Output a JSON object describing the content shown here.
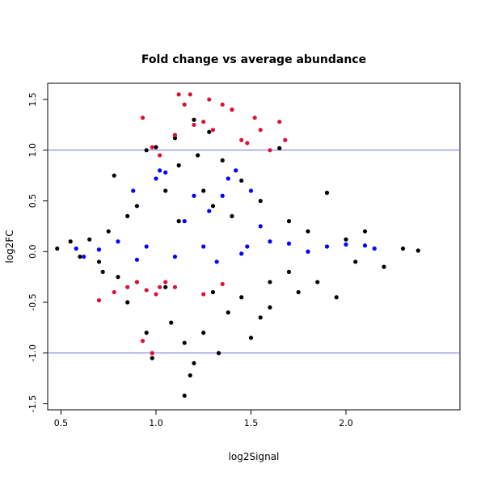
{
  "chart_data": {
    "type": "scatter",
    "title": "Fold change vs average abundance",
    "xlabel": "log2Signal",
    "ylabel": "log2FC",
    "xlim": [
      0.43,
      2.6
    ],
    "ylim": [
      -1.56,
      1.66
    ],
    "x_ticks": [
      "0.5",
      "1.0",
      "1.5",
      "2.0"
    ],
    "y_ticks": [
      "-1.5",
      "-1.0",
      "-0.5",
      "0.0",
      "0.5",
      "1.0",
      "1.5"
    ],
    "hlines": [
      {
        "y": 1.0,
        "color": "#6f6fe6"
      },
      {
        "y": -1.0,
        "color": "#6f6fe6"
      }
    ],
    "grid": false,
    "legend": "none",
    "series": [
      {
        "color": "#000000",
        "points": [
          [
            0.48,
            0.03
          ],
          [
            0.55,
            0.1
          ],
          [
            0.6,
            -0.05
          ],
          [
            0.65,
            0.12
          ],
          [
            0.7,
            -0.1
          ],
          [
            0.75,
            0.2
          ],
          [
            0.78,
            0.75
          ],
          [
            0.8,
            -0.25
          ],
          [
            0.85,
            0.35
          ],
          [
            0.9,
            -0.3
          ],
          [
            0.95,
            1.0
          ],
          [
            1.0,
            1.03
          ],
          [
            1.05,
            0.6
          ],
          [
            1.08,
            -0.7
          ],
          [
            1.1,
            1.12
          ],
          [
            1.12,
            0.85
          ],
          [
            1.15,
            -0.9
          ],
          [
            1.18,
            -1.22
          ],
          [
            1.2,
            1.3
          ],
          [
            1.22,
            0.95
          ],
          [
            1.25,
            -0.8
          ],
          [
            1.28,
            1.18
          ],
          [
            1.3,
            0.45
          ],
          [
            1.33,
            -1.0
          ],
          [
            1.35,
            0.9
          ],
          [
            1.38,
            -0.6
          ],
          [
            1.4,
            1.4
          ],
          [
            1.45,
            0.7
          ],
          [
            1.5,
            -0.85
          ],
          [
            1.55,
            0.5
          ],
          [
            1.6,
            -0.55
          ],
          [
            1.65,
            1.02
          ],
          [
            1.7,
            0.3
          ],
          [
            1.75,
            -0.4
          ],
          [
            1.8,
            0.2
          ],
          [
            1.9,
            0.58
          ],
          [
            1.95,
            -0.45
          ],
          [
            2.0,
            0.12
          ],
          [
            2.1,
            0.2
          ],
          [
            2.2,
            -0.15
          ],
          [
            2.3,
            0.03
          ],
          [
            2.38,
            0.01
          ],
          [
            1.15,
            -1.42
          ],
          [
            0.98,
            -1.05
          ],
          [
            1.2,
            -1.1
          ],
          [
            0.85,
            -0.5
          ],
          [
            1.45,
            -0.45
          ],
          [
            1.6,
            -0.3
          ],
          [
            0.72,
            -0.2
          ],
          [
            1.05,
            -0.35
          ],
          [
            1.12,
            0.3
          ],
          [
            1.4,
            0.35
          ],
          [
            0.9,
            0.45
          ],
          [
            1.3,
            -0.4
          ],
          [
            1.7,
            -0.2
          ],
          [
            1.85,
            -0.3
          ],
          [
            2.05,
            -0.1
          ],
          [
            0.95,
            -0.8
          ],
          [
            1.25,
            0.6
          ],
          [
            1.55,
            -0.65
          ]
        ]
      },
      {
        "color": "#0000ff",
        "points": [
          [
            0.58,
            0.03
          ],
          [
            0.62,
            -0.05
          ],
          [
            0.7,
            0.02
          ],
          [
            0.8,
            0.1
          ],
          [
            0.9,
            -0.08
          ],
          [
            0.95,
            0.05
          ],
          [
            1.0,
            0.72
          ],
          [
            1.02,
            0.8
          ],
          [
            1.05,
            0.78
          ],
          [
            1.1,
            -0.05
          ],
          [
            1.15,
            0.3
          ],
          [
            1.2,
            0.55
          ],
          [
            1.25,
            0.05
          ],
          [
            1.28,
            0.4
          ],
          [
            1.32,
            -0.1
          ],
          [
            1.38,
            0.72
          ],
          [
            1.42,
            0.8
          ],
          [
            1.48,
            0.05
          ],
          [
            1.5,
            0.6
          ],
          [
            1.55,
            0.25
          ],
          [
            1.6,
            0.1
          ],
          [
            1.7,
            0.08
          ],
          [
            1.8,
            0.0
          ],
          [
            1.9,
            0.05
          ],
          [
            2.0,
            0.07
          ],
          [
            2.1,
            0.06
          ],
          [
            2.15,
            0.03
          ],
          [
            0.88,
            0.6
          ],
          [
            1.35,
            0.55
          ],
          [
            1.45,
            -0.02
          ]
        ]
      },
      {
        "color": "#dd1133",
        "points": [
          [
            0.93,
            1.32
          ],
          [
            0.98,
            1.03
          ],
          [
            1.02,
            0.95
          ],
          [
            1.1,
            1.15
          ],
          [
            1.12,
            1.55
          ],
          [
            1.15,
            1.45
          ],
          [
            1.18,
            1.55
          ],
          [
            1.2,
            1.25
          ],
          [
            1.25,
            1.28
          ],
          [
            1.28,
            1.5
          ],
          [
            1.3,
            1.2
          ],
          [
            1.35,
            1.45
          ],
          [
            1.4,
            1.4
          ],
          [
            1.45,
            1.1
          ],
          [
            1.48,
            1.07
          ],
          [
            1.52,
            1.32
          ],
          [
            1.55,
            1.2
          ],
          [
            1.6,
            1.0
          ],
          [
            1.65,
            1.28
          ],
          [
            1.68,
            1.1
          ],
          [
            0.7,
            -0.48
          ],
          [
            0.78,
            -0.4
          ],
          [
            0.85,
            -0.35
          ],
          [
            0.9,
            -0.3
          ],
          [
            0.95,
            -0.38
          ],
          [
            1.0,
            -0.42
          ],
          [
            1.05,
            -0.3
          ],
          [
            1.1,
            -0.35
          ],
          [
            1.25,
            -0.42
          ],
          [
            1.35,
            -0.32
          ],
          [
            0.93,
            -0.88
          ],
          [
            0.98,
            -1.0
          ],
          [
            1.02,
            -0.35
          ]
        ]
      }
    ]
  }
}
